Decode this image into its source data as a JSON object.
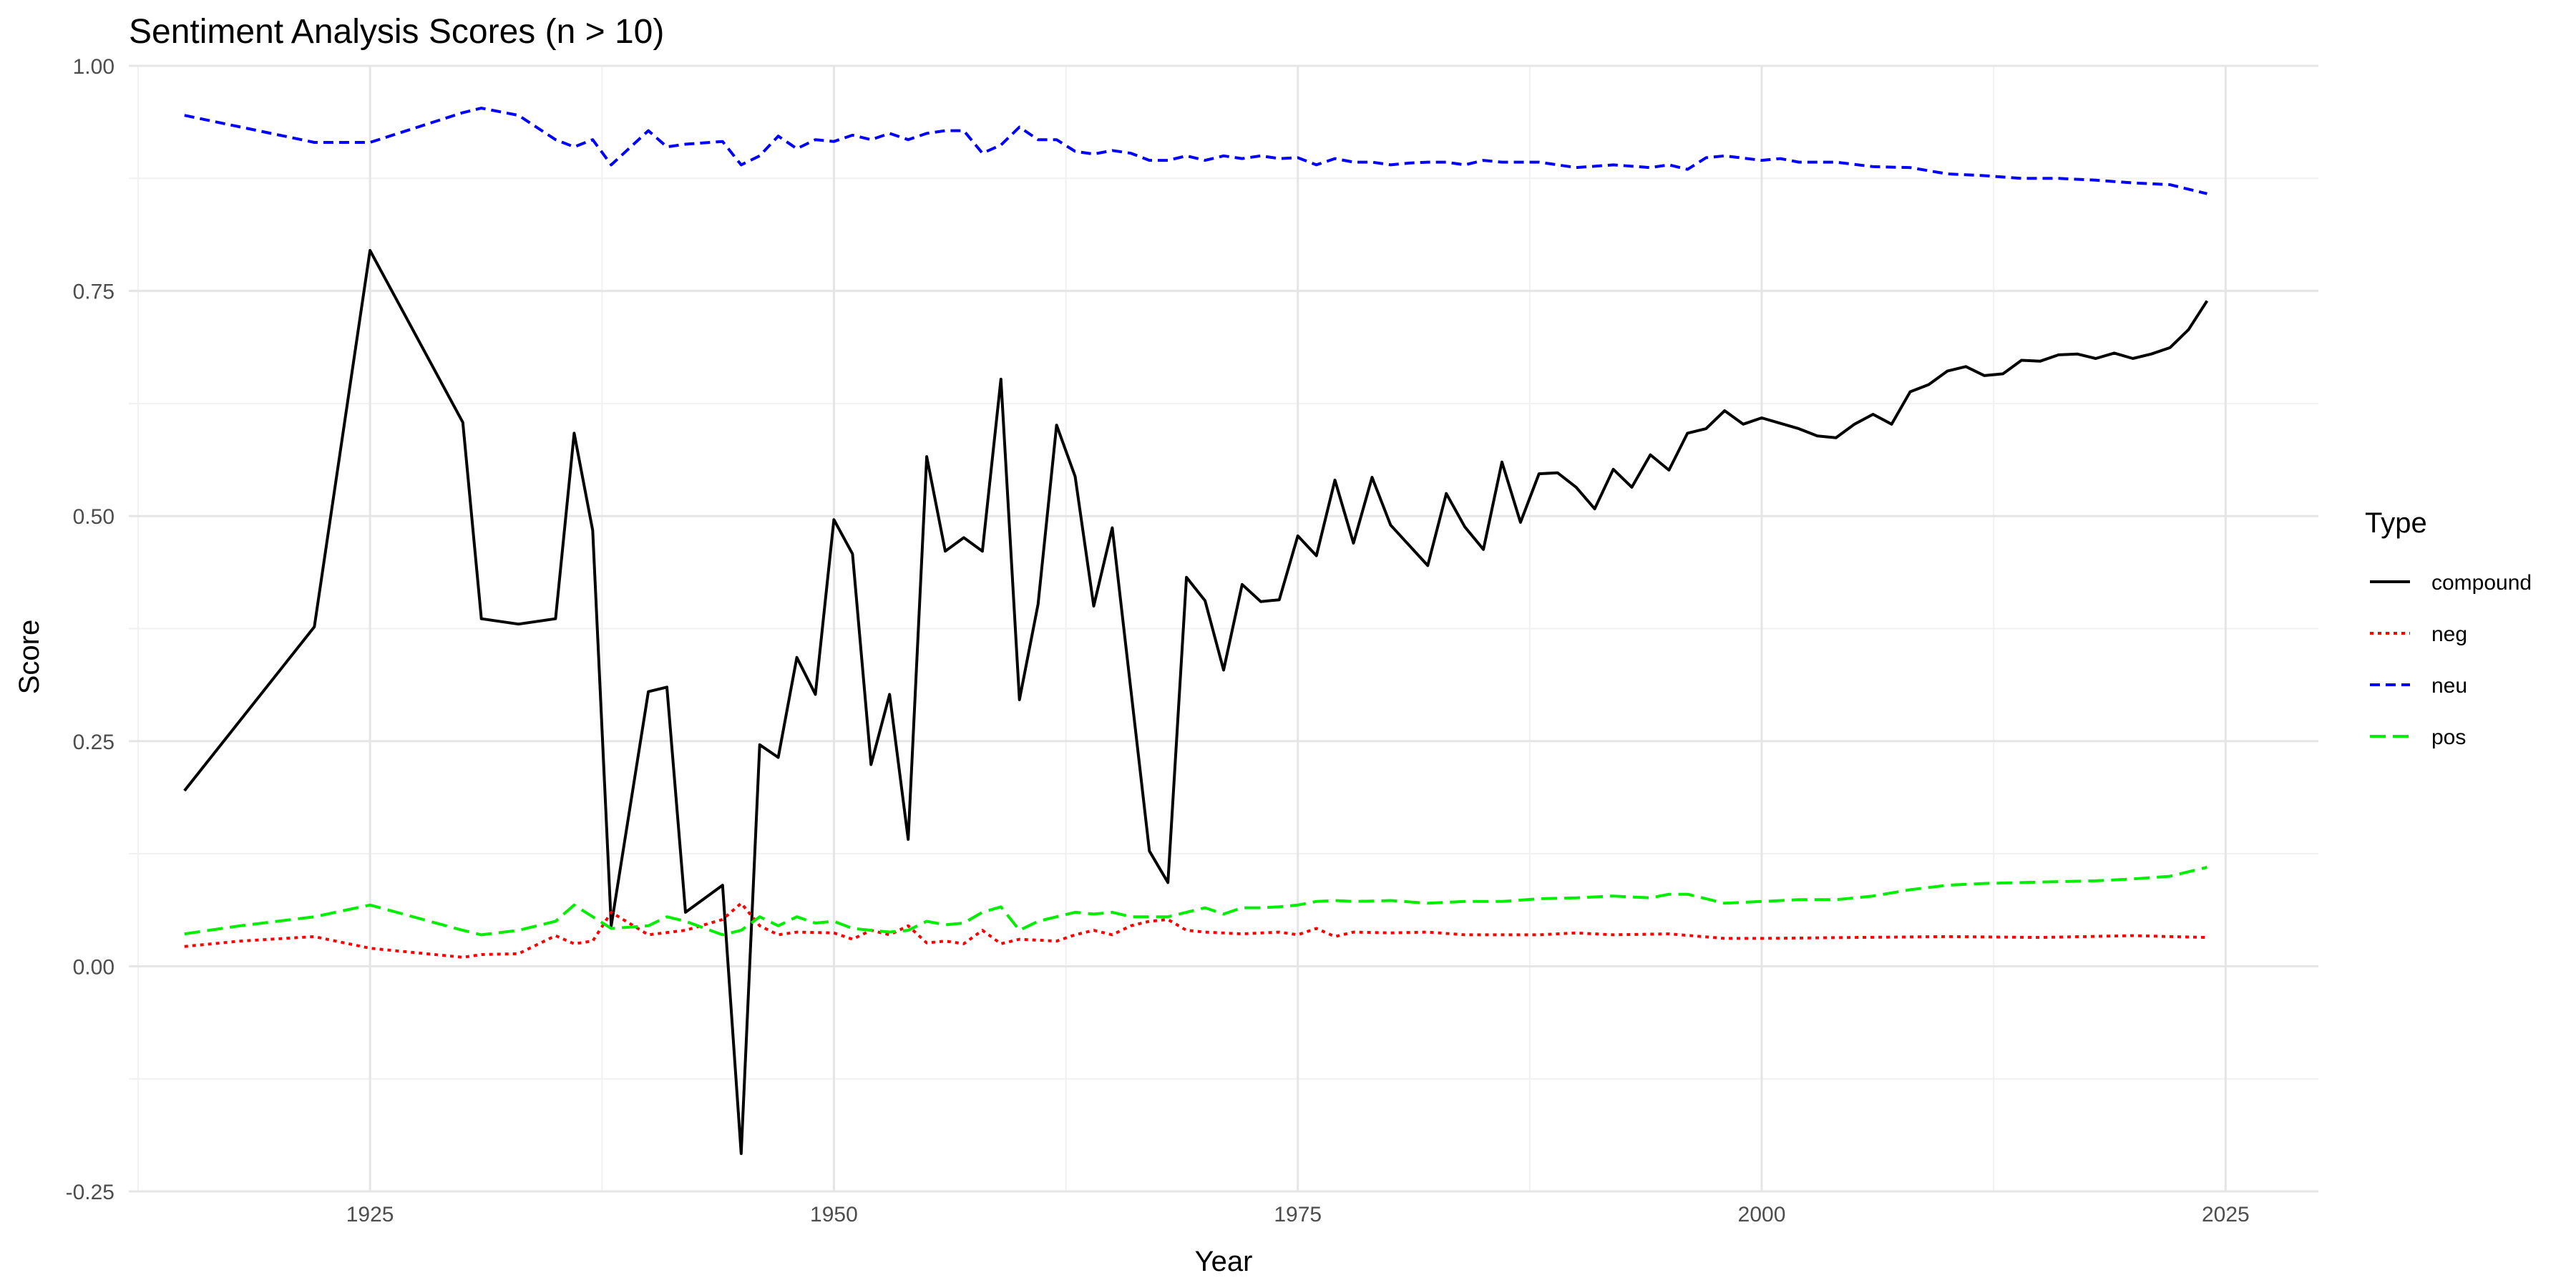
{
  "chart_data": {
    "type": "line",
    "title": "Sentiment Analysis Scores (n > 10)",
    "xlabel": "Year",
    "ylabel": "Score",
    "xlim": [
      1912,
      2030
    ],
    "ylim": [
      -0.25,
      1.0
    ],
    "x_ticks": [
      1925,
      1950,
      1975,
      2000,
      2025
    ],
    "y_ticks": [
      -0.25,
      0,
      0.25,
      0.5,
      0.75,
      1.0
    ],
    "y_tick_labels": [
      "-0.25",
      "0.00",
      "0.25",
      "0.50",
      "0.75",
      "1.00"
    ],
    "grid": true,
    "legend": {
      "title": "Type",
      "position": "right"
    },
    "series": [
      {
        "name": "compound",
        "color": "#000000",
        "dash": "solid",
        "x": [
          1915,
          1922,
          1925,
          1930,
          1931,
          1933,
          1935,
          1936,
          1937,
          1938,
          1940,
          1941,
          1942,
          1944,
          1945,
          1946,
          1947,
          1948,
          1949,
          1950,
          1951,
          1952,
          1953,
          1954,
          1955,
          1956,
          1957,
          1958,
          1959,
          1960,
          1961,
          1962,
          1963,
          1964,
          1965,
          1967,
          1968,
          1969,
          1970,
          1971,
          1972,
          1973,
          1974,
          1975,
          1976,
          1977,
          1978,
          1979,
          1980,
          1982,
          1983,
          1984,
          1985,
          1986,
          1987,
          1988,
          1989,
          1990,
          1991,
          1992,
          1993,
          1994,
          1995,
          1996,
          1997,
          1998,
          1999,
          2000,
          2001,
          2002,
          2003,
          2004,
          2005,
          2006,
          2007,
          2008,
          2009,
          2010,
          2011,
          2012,
          2013,
          2014,
          2015,
          2016,
          2017,
          2018,
          2019,
          2020,
          2021,
          2022,
          2023,
          2024
        ],
        "values": [
          0.195,
          0.377,
          0.795,
          0.604,
          0.386,
          0.38,
          0.386,
          0.592,
          0.484,
          0.045,
          0.305,
          0.31,
          0.06,
          0.09,
          -0.208,
          0.246,
          0.232,
          0.343,
          0.302,
          0.496,
          0.458,
          0.224,
          0.302,
          0.141,
          0.566,
          0.461,
          0.476,
          0.461,
          0.652,
          0.296,
          0.402,
          0.601,
          0.544,
          0.4,
          0.487,
          0.128,
          0.093,
          0.432,
          0.406,
          0.329,
          0.424,
          0.405,
          0.407,
          0.478,
          0.456,
          0.54,
          0.47,
          0.543,
          0.49,
          0.445,
          0.525,
          0.488,
          0.463,
          0.56,
          0.493,
          0.547,
          0.548,
          0.532,
          0.508,
          0.552,
          0.532,
          0.568,
          0.551,
          0.592,
          0.597,
          0.617,
          0.602,
          0.609,
          0.603,
          0.597,
          0.589,
          0.587,
          0.602,
          0.613,
          0.602,
          0.638,
          0.646,
          0.661,
          0.666,
          0.656,
          0.658,
          0.673,
          0.672,
          0.679,
          0.68,
          0.675,
          0.681,
          0.675,
          0.68,
          0.687,
          0.707,
          0.739
        ]
      },
      {
        "name": "neg",
        "color": "#ff0000",
        "dash": "dotted",
        "x": [
          1915,
          1918,
          1922,
          1925,
          1930,
          1931,
          1933,
          1935,
          1936,
          1937,
          1938,
          1940,
          1942,
          1944,
          1945,
          1946,
          1947,
          1948,
          1950,
          1951,
          1952,
          1953,
          1954,
          1955,
          1956,
          1957,
          1958,
          1959,
          1960,
          1962,
          1963,
          1964,
          1965,
          1966,
          1967,
          1968,
          1969,
          1970,
          1972,
          1974,
          1975,
          1976,
          1977,
          1978,
          1980,
          1982,
          1984,
          1986,
          1988,
          1990,
          1992,
          1995,
          1998,
          2000,
          2005,
          2010,
          2015,
          2020,
          2024
        ],
        "values": [
          0.022,
          0.028,
          0.033,
          0.02,
          0.01,
          0.013,
          0.014,
          0.034,
          0.025,
          0.028,
          0.06,
          0.035,
          0.04,
          0.052,
          0.07,
          0.045,
          0.035,
          0.038,
          0.037,
          0.03,
          0.04,
          0.035,
          0.045,
          0.026,
          0.028,
          0.025,
          0.04,
          0.025,
          0.03,
          0.028,
          0.035,
          0.04,
          0.035,
          0.045,
          0.05,
          0.052,
          0.04,
          0.038,
          0.036,
          0.038,
          0.035,
          0.042,
          0.033,
          0.038,
          0.037,
          0.038,
          0.035,
          0.035,
          0.035,
          0.037,
          0.035,
          0.036,
          0.031,
          0.031,
          0.032,
          0.033,
          0.032,
          0.034,
          0.032
        ]
      },
      {
        "name": "neu",
        "color": "#0000ff",
        "dash": "dashed",
        "x": [
          1915,
          1922,
          1925,
          1930,
          1931,
          1933,
          1935,
          1936,
          1937,
          1938,
          1940,
          1941,
          1942,
          1944,
          1945,
          1946,
          1947,
          1948,
          1949,
          1950,
          1951,
          1952,
          1953,
          1954,
          1955,
          1956,
          1957,
          1958,
          1959,
          1960,
          1961,
          1962,
          1963,
          1964,
          1965,
          1966,
          1967,
          1968,
          1969,
          1970,
          1971,
          1972,
          1973,
          1974,
          1975,
          1976,
          1977,
          1978,
          1979,
          1980,
          1981,
          1982,
          1983,
          1984,
          1985,
          1986,
          1988,
          1990,
          1992,
          1994,
          1995,
          1996,
          1997,
          1998,
          2000,
          2001,
          2002,
          2004,
          2006,
          2008,
          2010,
          2012,
          2014,
          2016,
          2018,
          2020,
          2022,
          2024
        ],
        "values": [
          0.945,
          0.915,
          0.915,
          0.948,
          0.953,
          0.945,
          0.918,
          0.91,
          0.918,
          0.89,
          0.928,
          0.91,
          0.913,
          0.916,
          0.89,
          0.9,
          0.922,
          0.908,
          0.918,
          0.916,
          0.923,
          0.918,
          0.925,
          0.918,
          0.925,
          0.928,
          0.928,
          0.903,
          0.912,
          0.932,
          0.918,
          0.918,
          0.905,
          0.902,
          0.906,
          0.903,
          0.895,
          0.895,
          0.9,
          0.895,
          0.9,
          0.897,
          0.9,
          0.897,
          0.898,
          0.89,
          0.897,
          0.893,
          0.893,
          0.89,
          0.892,
          0.893,
          0.893,
          0.89,
          0.895,
          0.893,
          0.893,
          0.887,
          0.89,
          0.887,
          0.89,
          0.885,
          0.898,
          0.9,
          0.895,
          0.897,
          0.893,
          0.893,
          0.888,
          0.887,
          0.88,
          0.878,
          0.875,
          0.875,
          0.873,
          0.87,
          0.868,
          0.858
        ]
      },
      {
        "name": "pos",
        "color": "#00ee00",
        "dash": "longdash",
        "x": [
          1915,
          1918,
          1922,
          1925,
          1930,
          1931,
          1933,
          1935,
          1936,
          1937,
          1938,
          1940,
          1941,
          1942,
          1944,
          1945,
          1946,
          1947,
          1948,
          1949,
          1950,
          1951,
          1952,
          1953,
          1954,
          1955,
          1956,
          1957,
          1958,
          1959,
          1960,
          1961,
          1962,
          1963,
          1964,
          1965,
          1966,
          1967,
          1968,
          1969,
          1970,
          1971,
          1972,
          1973,
          1974,
          1975,
          1976,
          1977,
          1978,
          1980,
          1982,
          1984,
          1986,
          1988,
          1990,
          1992,
          1994,
          1995,
          1996,
          1998,
          2000,
          2002,
          2004,
          2006,
          2008,
          2010,
          2012,
          2014,
          2016,
          2018,
          2020,
          2022,
          2024
        ],
        "values": [
          0.036,
          0.045,
          0.055,
          0.068,
          0.04,
          0.035,
          0.04,
          0.05,
          0.068,
          0.055,
          0.042,
          0.045,
          0.055,
          0.05,
          0.035,
          0.04,
          0.055,
          0.045,
          0.055,
          0.048,
          0.05,
          0.042,
          0.04,
          0.038,
          0.04,
          0.05,
          0.046,
          0.048,
          0.06,
          0.066,
          0.04,
          0.05,
          0.055,
          0.06,
          0.058,
          0.06,
          0.055,
          0.055,
          0.055,
          0.06,
          0.065,
          0.058,
          0.065,
          0.065,
          0.066,
          0.068,
          0.072,
          0.073,
          0.072,
          0.073,
          0.07,
          0.072,
          0.072,
          0.075,
          0.076,
          0.078,
          0.076,
          0.08,
          0.08,
          0.07,
          0.072,
          0.074,
          0.074,
          0.078,
          0.085,
          0.09,
          0.092,
          0.093,
          0.094,
          0.095,
          0.097,
          0.1,
          0.11
        ]
      }
    ]
  }
}
